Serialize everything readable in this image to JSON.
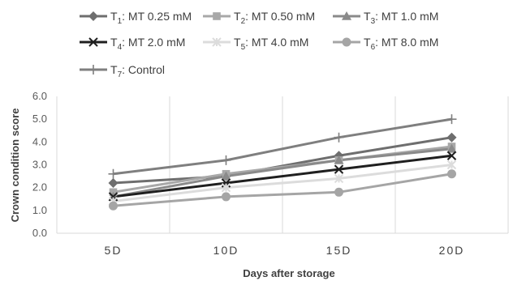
{
  "chart_data": {
    "type": "line",
    "x": [
      "5D",
      "10D",
      "15D",
      "20D"
    ],
    "xlabel": "Days after storage",
    "ylabel": "Crown condition score",
    "ylim": [
      0,
      6
    ],
    "yticks": [
      "0.0",
      "1.0",
      "2.0",
      "3.0",
      "4.0",
      "5.0",
      "6.0"
    ],
    "grid": "vertical",
    "legend": "top",
    "series": [
      {
        "name": "T1: MT 0.25 mM",
        "prefix": "T",
        "sub": "1",
        "rest": ": MT 0.25 mM",
        "marker": "diamond",
        "color": "#6e6e6e",
        "values": [
          2.2,
          2.5,
          3.4,
          4.2
        ]
      },
      {
        "name": "T2: MT 0.50 mM",
        "prefix": "T",
        "sub": "2",
        "rest": ": MT 0.50 mM",
        "marker": "square",
        "color": "#a8a8a8",
        "values": [
          1.8,
          2.6,
          3.2,
          3.8
        ]
      },
      {
        "name": "T3: MT 1.0 mM",
        "prefix": "T",
        "sub": "3",
        "rest": ": MT 1.0 mM",
        "marker": "triangle",
        "color": "#8a8a8a",
        "values": [
          1.6,
          2.5,
          3.2,
          3.7
        ]
      },
      {
        "name": "T4: MT 2.0 mM",
        "prefix": "T",
        "sub": "4",
        "rest": ": MT 2.0 mM",
        "marker": "x",
        "color": "#1f1f1f",
        "values": [
          1.6,
          2.2,
          2.8,
          3.4
        ]
      },
      {
        "name": "T5: MT 4.0 mM",
        "prefix": "T",
        "sub": "5",
        "rest": ": MT 4.0 mM",
        "marker": "star",
        "color": "#dcdcdc",
        "values": [
          1.4,
          2.0,
          2.4,
          3.0
        ]
      },
      {
        "name": "T6: MT 8.0 mM",
        "prefix": "T",
        "sub": "6",
        "rest": ": MT 8.0 mM",
        "marker": "circle",
        "color": "#a5a5a5",
        "values": [
          1.2,
          1.6,
          1.8,
          2.6
        ]
      },
      {
        "name": "T7: Control",
        "prefix": "T",
        "sub": "7",
        "rest": ": Control",
        "marker": "plus",
        "color": "#7f7f7f",
        "values": [
          2.6,
          3.2,
          4.2,
          5.0
        ]
      }
    ]
  }
}
